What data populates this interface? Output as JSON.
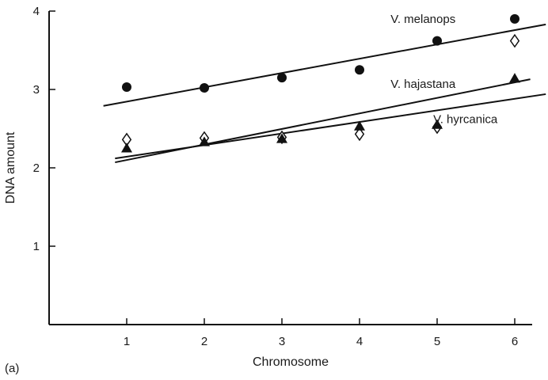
{
  "panel_label": "(a)",
  "chart_data": {
    "type": "scatter",
    "xlabel": "Chromosome",
    "ylabel": "DNA amount",
    "x_ticks": [
      1,
      2,
      3,
      4,
      5,
      6
    ],
    "y_ticks": [
      1,
      2,
      3,
      4
    ],
    "xlim": [
      0,
      6.1
    ],
    "ylim": [
      0,
      4
    ],
    "grid": false,
    "legend": "none",
    "series": [
      {
        "name": "V. melanops",
        "marker": "filled-circle",
        "color": "#111111",
        "x": [
          1,
          2,
          3,
          4,
          5,
          6
        ],
        "y": [
          3.03,
          3.02,
          3.15,
          3.25,
          3.62,
          3.9
        ],
        "fit_line": {
          "x": [
            0.7,
            6.4
          ],
          "y": [
            2.79,
            3.83
          ]
        }
      },
      {
        "name": "V. hajastana",
        "marker": "open-diamond",
        "color": "#111111",
        "x": [
          1,
          2,
          3,
          4,
          5,
          6
        ],
        "y": [
          2.36,
          2.38,
          2.39,
          2.43,
          2.52,
          3.62
        ],
        "fit_line": {
          "x": [
            0.85,
            6.2
          ],
          "y": [
            2.07,
            3.13
          ]
        }
      },
      {
        "name": "V. hyrcanica",
        "marker": "filled-triangle",
        "color": "#111111",
        "x": [
          1,
          2,
          3,
          4,
          5,
          6
        ],
        "y": [
          2.25,
          2.33,
          2.37,
          2.53,
          2.55,
          3.14
        ],
        "fit_line": {
          "x": [
            0.85,
            6.4
          ],
          "y": [
            2.12,
            2.94
          ]
        }
      }
    ]
  }
}
